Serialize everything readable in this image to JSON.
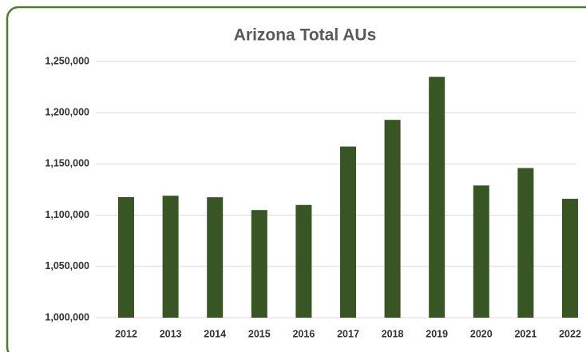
{
  "chart_data": {
    "type": "bar",
    "title": "Arizona Total AUs",
    "categories": [
      "2012",
      "2013",
      "2014",
      "2015",
      "2016",
      "2017",
      "2018",
      "2019",
      "2020",
      "2021",
      "2022"
    ],
    "values": [
      1117600,
      1119000,
      1117500,
      1105000,
      1110000,
      1167000,
      1193000,
      1235000,
      1129000,
      1146000,
      1116000
    ],
    "color": "#375623",
    "ylim": [
      1000000,
      1250000
    ],
    "yticks": [
      {
        "value": 1000000,
        "label": "1,000,000"
      },
      {
        "value": 1050000,
        "label": "1,050,000"
      },
      {
        "value": 1100000,
        "label": "1,100,000"
      },
      {
        "value": 1150000,
        "label": "1,150,000"
      },
      {
        "value": 1200000,
        "label": "1,200,000"
      },
      {
        "value": 1250000,
        "label": "1,250,000"
      }
    ],
    "grid": true
  }
}
